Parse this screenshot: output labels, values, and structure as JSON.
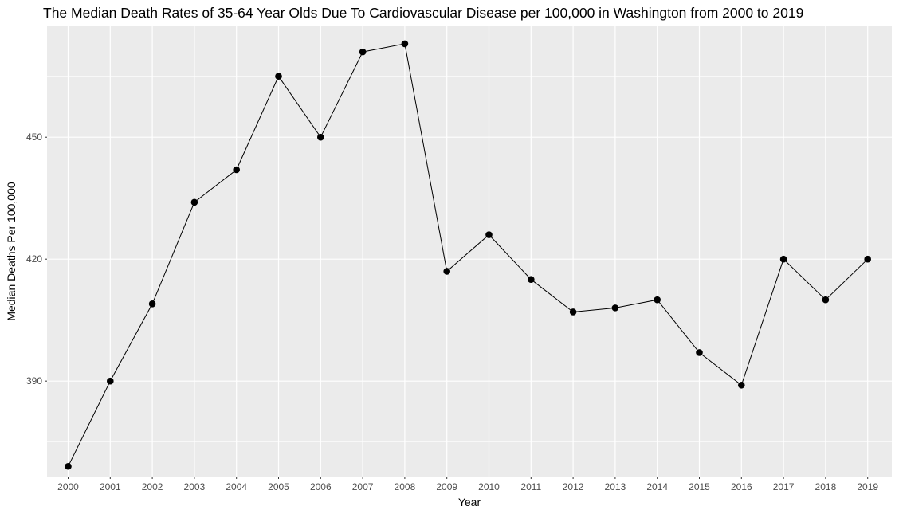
{
  "chart_data": {
    "type": "line",
    "title": "The Median Death Rates of 35-64 Year Olds Due To Cardiovascular Disease per 100,000 in Washington from 2000 to 2019",
    "xlabel": "Year",
    "ylabel": "Median Deaths Per 100,000",
    "x": [
      2000,
      2001,
      2002,
      2003,
      2004,
      2005,
      2006,
      2007,
      2008,
      2009,
      2010,
      2011,
      2012,
      2013,
      2014,
      2015,
      2016,
      2017,
      2018,
      2019
    ],
    "x_tick_labels": [
      "2000",
      "2001",
      "2002",
      "2003",
      "2004",
      "2005",
      "2006",
      "2007",
      "2008",
      "2009",
      "2010",
      "2011",
      "2012",
      "2013",
      "2014",
      "2015",
      "2016",
      "2017",
      "2018",
      "2019"
    ],
    "series": [
      {
        "name": "Median Deaths Per 100,000",
        "values": [
          369,
          390,
          409,
          434,
          442,
          465,
          450,
          471,
          473,
          417,
          426,
          415,
          407,
          408,
          410,
          397,
          389,
          420,
          410,
          420
        ]
      }
    ],
    "y_ticks": [
      390,
      420,
      450
    ],
    "y_tick_labels": [
      "390",
      "420",
      "450"
    ],
    "ylim": [
      366.5,
      477.3
    ],
    "grid": true,
    "legend": "none",
    "colors": {
      "panel": "#ebebeb",
      "grid": "#ffffff",
      "line": "#000000",
      "point": "#000000"
    }
  }
}
